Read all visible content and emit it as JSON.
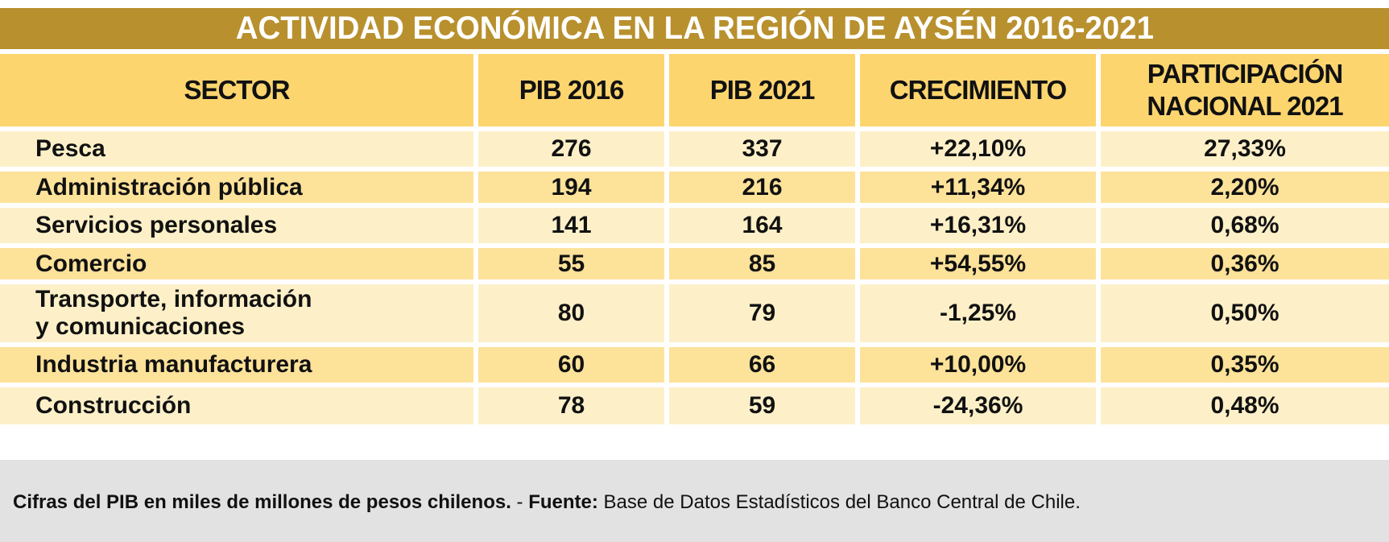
{
  "title": "ACTIVIDAD ECONÓMICA EN LA REGIÓN DE AYSÉN 2016-2021",
  "headers": {
    "sector": "SECTOR",
    "pib2016": "PIB 2016",
    "pib2021": "PIB 2021",
    "crecimiento": "CRECIMIENTO",
    "participacion": "PARTICIPACIÓN NACIONAL 2021"
  },
  "rows": [
    {
      "sector": "Pesca",
      "pib2016": "276",
      "pib2021": "337",
      "crecimiento": "+22,10%",
      "participacion": "27,33%"
    },
    {
      "sector": "Administración pública",
      "pib2016": "194",
      "pib2021": "216",
      "crecimiento": "+11,34%",
      "participacion": "2,20%"
    },
    {
      "sector": "Servicios personales",
      "pib2016": "141",
      "pib2021": "164",
      "crecimiento": "+16,31%",
      "participacion": "0,68%"
    },
    {
      "sector": "Comercio",
      "pib2016": "55",
      "pib2021": "85",
      "crecimiento": "+54,55%",
      "participacion": "0,36%"
    },
    {
      "sector": "Transporte, información y comunicaciones",
      "pib2016": "80",
      "pib2021": "79",
      "crecimiento": "-1,25%",
      "participacion": "0,50%"
    },
    {
      "sector": "Industria manufacturera",
      "pib2016": "60",
      "pib2021": "66",
      "crecimiento": "+10,00%",
      "participacion": "0,35%"
    },
    {
      "sector": "Construcción",
      "pib2016": "78",
      "pib2021": "59",
      "crecimiento": "-24,36%",
      "participacion": "0,48%"
    }
  ],
  "footer": {
    "note_bold": "Cifras del PIB en miles de millones de pesos chilenos.",
    "separator": " - ",
    "source_label": "Fuente:",
    "source_text": " Base de Datos Estadísticos del Banco Central de Chile."
  },
  "colors": {
    "title_bar": "#b8902e",
    "header_cells": "#fdd56f",
    "row_light": "#fdf0c8",
    "row_dark": "#fde29a",
    "footer": "#e2e2e2"
  }
}
